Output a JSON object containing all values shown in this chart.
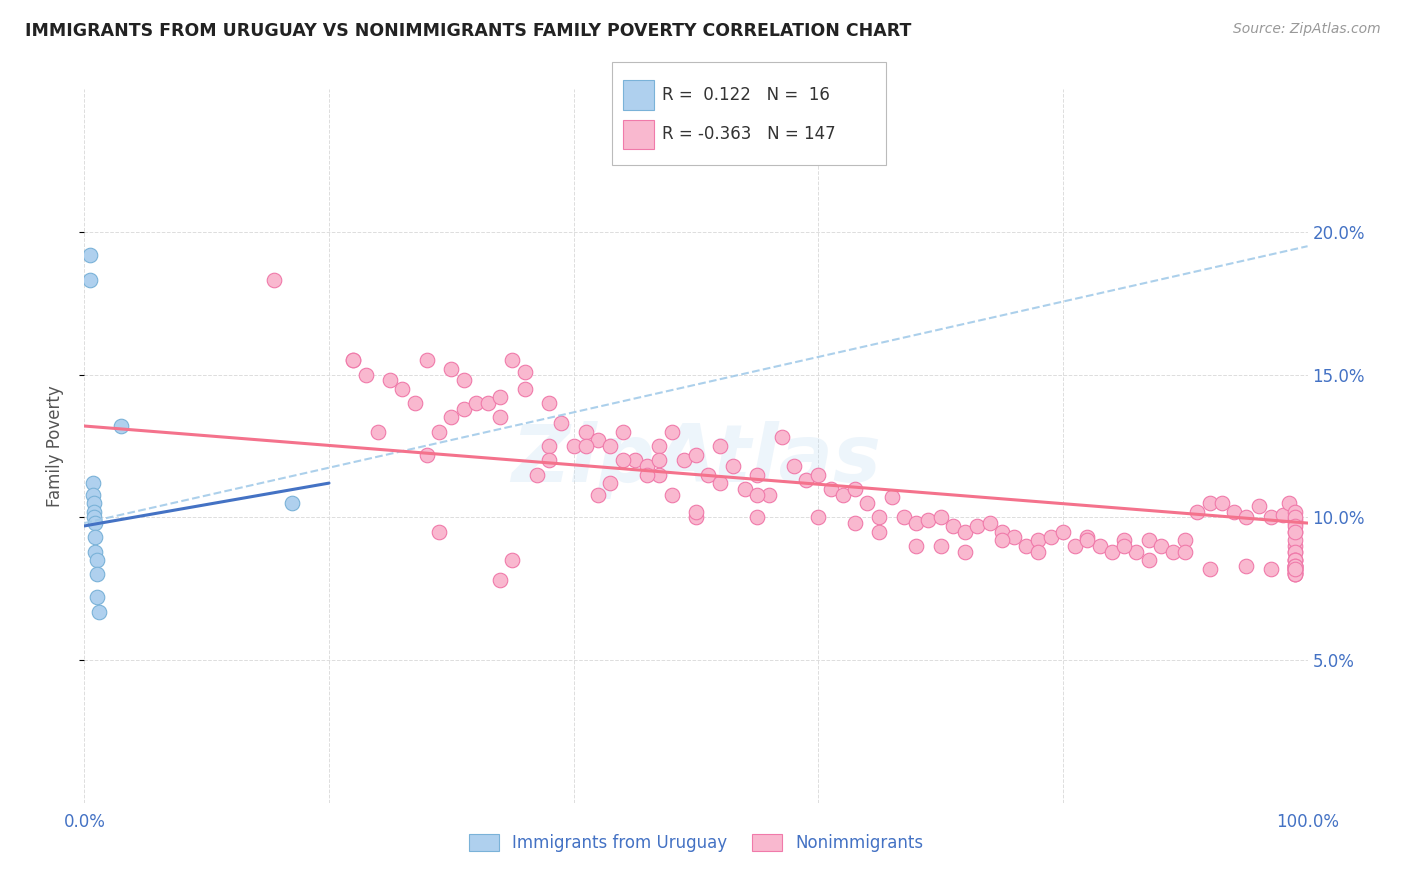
{
  "title": "IMMIGRANTS FROM URUGUAY VS NONIMMIGRANTS FAMILY POVERTY CORRELATION CHART",
  "source": "Source: ZipAtlas.com",
  "ylabel": "Family Poverty",
  "xlim": [
    0,
    1.0
  ],
  "ylim": [
    0,
    0.25
  ],
  "ytick_vals": [
    0.05,
    0.1,
    0.15,
    0.2
  ],
  "ytick_labels": [
    "5.0%",
    "10.0%",
    "15.0%",
    "20.0%"
  ],
  "xtick_vals": [
    0.0,
    0.2,
    0.4,
    0.6,
    0.8,
    1.0
  ],
  "xtick_labels": [
    "0.0%",
    "",
    "",
    "",
    "",
    "100.0%"
  ],
  "legend_label1": "Immigrants from Uruguay",
  "legend_label2": "Nonimmigrants",
  "r1": "0.122",
  "n1": "16",
  "r2": "-0.363",
  "n2": "147",
  "blue_fill": "#afd0ee",
  "blue_edge": "#7ab2d8",
  "pink_fill": "#f9b8cf",
  "pink_edge": "#f07aaa",
  "blue_line_color": "#4472c4",
  "pink_line_color": "#f4728c",
  "dashed_line_color": "#9ec8e8",
  "watermark": "ZipAtlas",
  "blue_points_x": [
    0.005,
    0.005,
    0.007,
    0.007,
    0.008,
    0.008,
    0.008,
    0.009,
    0.009,
    0.009,
    0.01,
    0.01,
    0.01,
    0.012,
    0.17,
    0.03
  ],
  "blue_points_y": [
    0.192,
    0.183,
    0.112,
    0.108,
    0.105,
    0.102,
    0.1,
    0.098,
    0.093,
    0.088,
    0.085,
    0.08,
    0.072,
    0.067,
    0.105,
    0.132
  ],
  "pink_points_x": [
    0.155,
    0.35,
    0.36,
    0.22,
    0.23,
    0.25,
    0.26,
    0.27,
    0.28,
    0.29,
    0.3,
    0.31,
    0.28,
    0.3,
    0.31,
    0.32,
    0.33,
    0.34,
    0.34,
    0.36,
    0.38,
    0.39,
    0.4,
    0.41,
    0.42,
    0.43,
    0.44,
    0.45,
    0.46,
    0.47,
    0.47,
    0.48,
    0.49,
    0.5,
    0.51,
    0.52,
    0.53,
    0.54,
    0.55,
    0.56,
    0.57,
    0.58,
    0.59,
    0.6,
    0.61,
    0.62,
    0.63,
    0.64,
    0.65,
    0.66,
    0.67,
    0.68,
    0.69,
    0.7,
    0.71,
    0.72,
    0.73,
    0.74,
    0.75,
    0.76,
    0.77,
    0.78,
    0.79,
    0.8,
    0.81,
    0.82,
    0.83,
    0.84,
    0.85,
    0.86,
    0.87,
    0.88,
    0.89,
    0.9,
    0.91,
    0.92,
    0.93,
    0.94,
    0.95,
    0.96,
    0.97,
    0.98,
    0.985,
    0.99,
    0.99,
    0.99,
    0.99,
    0.99,
    0.99,
    0.99,
    0.99,
    0.99,
    0.99,
    0.99,
    0.99,
    0.99,
    0.99,
    0.99,
    0.99,
    0.99,
    0.38,
    0.42,
    0.5,
    0.55,
    0.22,
    0.24,
    0.29,
    0.34,
    0.35,
    0.37,
    0.38,
    0.41,
    0.43,
    0.44,
    0.46,
    0.47,
    0.48,
    0.5,
    0.52,
    0.55,
    0.6,
    0.63,
    0.65,
    0.68,
    0.7,
    0.72,
    0.75,
    0.78,
    0.82,
    0.85,
    0.87,
    0.9,
    0.92,
    0.95,
    0.97,
    0.99,
    0.99,
    0.99,
    0.99,
    0.99,
    0.99,
    0.99,
    0.99,
    0.99,
    0.99,
    0.99,
    0.99
  ],
  "pink_points_y": [
    0.183,
    0.155,
    0.151,
    0.155,
    0.15,
    0.148,
    0.145,
    0.14,
    0.122,
    0.13,
    0.135,
    0.138,
    0.155,
    0.152,
    0.148,
    0.14,
    0.14,
    0.135,
    0.142,
    0.145,
    0.14,
    0.133,
    0.125,
    0.13,
    0.127,
    0.125,
    0.13,
    0.12,
    0.118,
    0.125,
    0.115,
    0.13,
    0.12,
    0.122,
    0.115,
    0.125,
    0.118,
    0.11,
    0.115,
    0.108,
    0.128,
    0.118,
    0.113,
    0.115,
    0.11,
    0.108,
    0.11,
    0.105,
    0.1,
    0.107,
    0.1,
    0.098,
    0.099,
    0.1,
    0.097,
    0.095,
    0.097,
    0.098,
    0.095,
    0.093,
    0.09,
    0.092,
    0.093,
    0.095,
    0.09,
    0.093,
    0.09,
    0.088,
    0.092,
    0.088,
    0.092,
    0.09,
    0.088,
    0.092,
    0.102,
    0.105,
    0.105,
    0.102,
    0.1,
    0.104,
    0.1,
    0.101,
    0.105,
    0.102,
    0.099,
    0.095,
    0.09,
    0.088,
    0.092,
    0.088,
    0.085,
    0.08,
    0.085,
    0.083,
    0.083,
    0.082,
    0.083,
    0.082,
    0.082,
    0.081,
    0.125,
    0.108,
    0.1,
    0.1,
    0.155,
    0.13,
    0.095,
    0.078,
    0.085,
    0.115,
    0.12,
    0.125,
    0.112,
    0.12,
    0.115,
    0.12,
    0.108,
    0.102,
    0.112,
    0.108,
    0.1,
    0.098,
    0.095,
    0.09,
    0.09,
    0.088,
    0.092,
    0.088,
    0.092,
    0.09,
    0.085,
    0.088,
    0.082,
    0.083,
    0.082,
    0.081,
    0.082,
    0.098,
    0.1,
    0.097,
    0.095,
    0.085,
    0.083,
    0.08,
    0.083,
    0.08,
    0.082
  ],
  "blue_line_x0": 0.0,
  "blue_line_x1": 0.2,
  "blue_line_y0": 0.097,
  "blue_line_y1": 0.112,
  "pink_line_y0": 0.132,
  "pink_line_y1": 0.098,
  "dash_line_y0": 0.098,
  "dash_line_y1": 0.195
}
